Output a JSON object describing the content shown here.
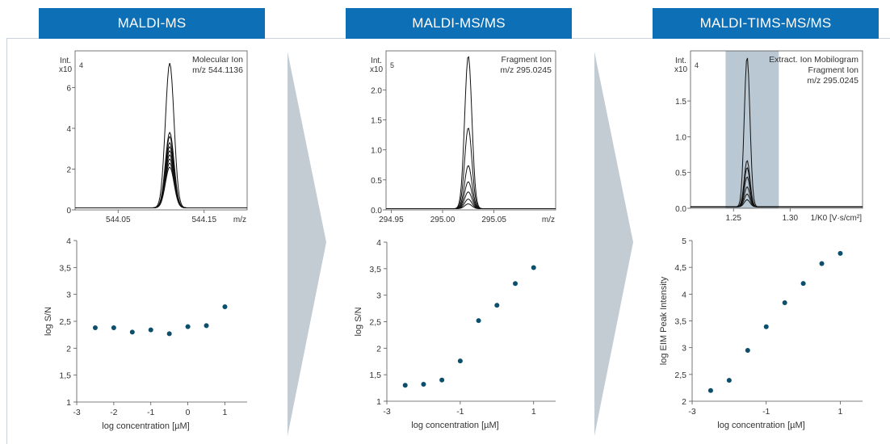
{
  "sections": [
    {
      "banner": "MALDI-MS"
    },
    {
      "banner": "MALDI-MS/MS"
    },
    {
      "banner": "MALDI-TIMS-MS/MS"
    }
  ],
  "colors": {
    "banner": "#0d6fb6",
    "arrow": "#c3ccd3",
    "highlight": "#b9c8d2",
    "marker": "#0b4f6c"
  },
  "chart_data": [
    {
      "type": "line",
      "panel": "MALDI-MS spectrum",
      "ylabel_top": "Int.",
      "ylabel_bottom": "x10",
      "exponent": "4",
      "annotation": [
        "Molecular Ion",
        "m/z 544.1136"
      ],
      "xunit": "m/z",
      "xlim": [
        544.0,
        544.2
      ],
      "ylim": [
        0,
        7.8
      ],
      "xticks": [
        544.05,
        544.15
      ],
      "xtick_labels": [
        "544.05",
        "544.15"
      ],
      "yticks": [
        0,
        2,
        4,
        6
      ],
      "ytick_labels": [
        "0",
        "2",
        "4",
        "6"
      ],
      "peak_center": 544.11,
      "peak_width": 0.005,
      "baseline": 0.1,
      "trace_heights": [
        7.1,
        3.7,
        3.5,
        3.2,
        3.0,
        2.8,
        2.6,
        2.4,
        2.2,
        2.0
      ]
    },
    {
      "type": "line",
      "panel": "MALDI-MS/MS spectrum",
      "ylabel_top": "Int.",
      "ylabel_bottom": "x10",
      "exponent": "5",
      "annotation": [
        "Fragment Ion",
        "m/z 295.0245"
      ],
      "xunit": "m/z",
      "xlim": [
        294.945,
        295.11
      ],
      "ylim": [
        0,
        2.65
      ],
      "xticks": [
        294.95,
        295.0,
        295.05
      ],
      "xtick_labels": [
        "294.95",
        "295.00",
        "295.05"
      ],
      "yticks": [
        0,
        0.5,
        1.0,
        1.5,
        2.0
      ],
      "ytick_labels": [
        "0.0",
        "0.5",
        "1.0",
        "1.5",
        "2.0"
      ],
      "peak_center": 295.025,
      "peak_width": 0.0035,
      "baseline": 0.02,
      "trace_heights": [
        2.55,
        1.35,
        0.72,
        0.45,
        0.28,
        0.16,
        0.08
      ]
    },
    {
      "type": "line",
      "panel": "MALDI-TIMS-MS/MS mobilogram",
      "ylabel_top": "Int.",
      "ylabel_bottom": "x10",
      "exponent": "4",
      "annotation": [
        "Extract. Ion Mobilogram",
        "Fragment Ion",
        "m/z 295.0245"
      ],
      "xunit": "1/K0 [V·s/cm²]",
      "xlim": [
        1.212,
        1.364
      ],
      "ylim": [
        0,
        2.2
      ],
      "xticks": [
        1.25,
        1.3
      ],
      "xtick_labels": [
        "1.25",
        "1.30"
      ],
      "yticks": [
        0,
        0.5,
        1.0,
        1.5
      ],
      "ytick_labels": [
        "0.0",
        "0.5",
        "1.0",
        "1.5"
      ],
      "highlight_range": [
        1.243,
        1.29
      ],
      "peak_center": 1.262,
      "peak_width": 0.0025,
      "baseline": 0.02,
      "trace_heights": [
        2.1,
        0.65,
        0.55,
        0.42,
        0.28,
        0.18,
        0.1
      ]
    },
    {
      "type": "scatter",
      "panel": "MALDI-MS calibration",
      "xlabel": "log concentration [µM]",
      "ylabel": "log S/N",
      "xlim": [
        -3,
        1.6
      ],
      "ylim": [
        1,
        4
      ],
      "xticks": [
        -3,
        -2,
        -1,
        0,
        1
      ],
      "xtick_labels": [
        "-3",
        "-2",
        "-1",
        "0",
        "1"
      ],
      "yticks": [
        1,
        1.5,
        2,
        2.5,
        3,
        3.5,
        4
      ],
      "ytick_labels": [
        "1",
        "1,5",
        "2",
        "2,5",
        "3",
        "3,5",
        "4"
      ],
      "x": [
        -2.5,
        -2.0,
        -1.5,
        -1.0,
        -0.5,
        0.0,
        0.5,
        1.0
      ],
      "y": [
        2.38,
        2.38,
        2.3,
        2.34,
        2.27,
        2.4,
        2.42,
        2.77
      ]
    },
    {
      "type": "scatter",
      "panel": "MALDI-MS/MS calibration",
      "xlabel": "log concentration [µM]",
      "ylabel": "log S/N",
      "xlim": [
        -3,
        1.6
      ],
      "ylim": [
        1,
        4
      ],
      "xticks": [
        -3,
        -1,
        1
      ],
      "xtick_labels": [
        "-3",
        "-1",
        "1"
      ],
      "yticks": [
        1,
        1.5,
        2,
        2.5,
        3,
        3.5,
        4
      ],
      "ytick_labels": [
        "1",
        "1,5",
        "2",
        "2,5",
        "3",
        "3,5",
        "4"
      ],
      "x": [
        -2.5,
        -2.0,
        -1.5,
        -1.0,
        -0.5,
        0.0,
        0.5,
        1.0
      ],
      "y": [
        1.3,
        1.32,
        1.4,
        1.76,
        2.52,
        2.81,
        3.22,
        3.52
      ]
    },
    {
      "type": "scatter",
      "panel": "MALDI-TIMS-MS/MS calibration",
      "xlabel": "log concentration [µM]",
      "ylabel": "log  EIM Peak Intensity",
      "xlim": [
        -3,
        1.6
      ],
      "ylim": [
        2,
        5
      ],
      "xticks": [
        -3,
        -1,
        1
      ],
      "xtick_labels": [
        "-3",
        "-1",
        "1"
      ],
      "yticks": [
        2,
        2.5,
        3,
        3.5,
        4,
        4.5,
        5
      ],
      "ytick_labels": [
        "2",
        "2,5",
        "3",
        "3,5",
        "4",
        "4,5",
        "5"
      ],
      "x": [
        -2.5,
        -2.0,
        -1.5,
        -1.0,
        -0.5,
        0.0,
        0.5,
        1.0
      ],
      "y": [
        2.2,
        2.39,
        2.95,
        3.39,
        3.84,
        4.2,
        4.57,
        4.76
      ]
    }
  ]
}
